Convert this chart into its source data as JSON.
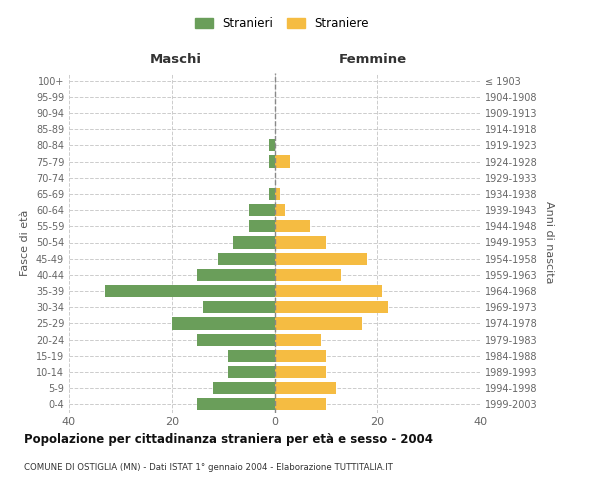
{
  "age_groups": [
    "0-4",
    "5-9",
    "10-14",
    "15-19",
    "20-24",
    "25-29",
    "30-34",
    "35-39",
    "40-44",
    "45-49",
    "50-54",
    "55-59",
    "60-64",
    "65-69",
    "70-74",
    "75-79",
    "80-84",
    "85-89",
    "90-94",
    "95-99",
    "100+"
  ],
  "birth_years": [
    "1999-2003",
    "1994-1998",
    "1989-1993",
    "1984-1988",
    "1979-1983",
    "1974-1978",
    "1969-1973",
    "1964-1968",
    "1959-1963",
    "1954-1958",
    "1949-1953",
    "1944-1948",
    "1939-1943",
    "1934-1938",
    "1929-1933",
    "1924-1928",
    "1919-1923",
    "1914-1918",
    "1909-1913",
    "1904-1908",
    "≤ 1903"
  ],
  "maschi": [
    15,
    12,
    9,
    9,
    15,
    20,
    14,
    33,
    15,
    11,
    8,
    5,
    5,
    1,
    0,
    1,
    1,
    0,
    0,
    0,
    0
  ],
  "femmine": [
    10,
    12,
    10,
    10,
    9,
    17,
    22,
    21,
    13,
    18,
    10,
    7,
    2,
    1,
    0,
    3,
    0,
    0,
    0,
    0,
    0
  ],
  "maschi_color": "#6a9e5a",
  "femmine_color": "#f5bc42",
  "title": "Popolazione per cittadinanza straniera per età e sesso - 2004",
  "subtitle": "COMUNE DI OSTIGLIA (MN) - Dati ISTAT 1° gennaio 2004 - Elaborazione TUTTITALIA.IT",
  "xlabel_left": "Maschi",
  "xlabel_right": "Femmine",
  "ylabel_left": "Fasce di età",
  "ylabel_right": "Anni di nascita",
  "legend_maschi": "Stranieri",
  "legend_femmine": "Straniere",
  "xlim": 40,
  "background_color": "#ffffff",
  "grid_color": "#cccccc"
}
